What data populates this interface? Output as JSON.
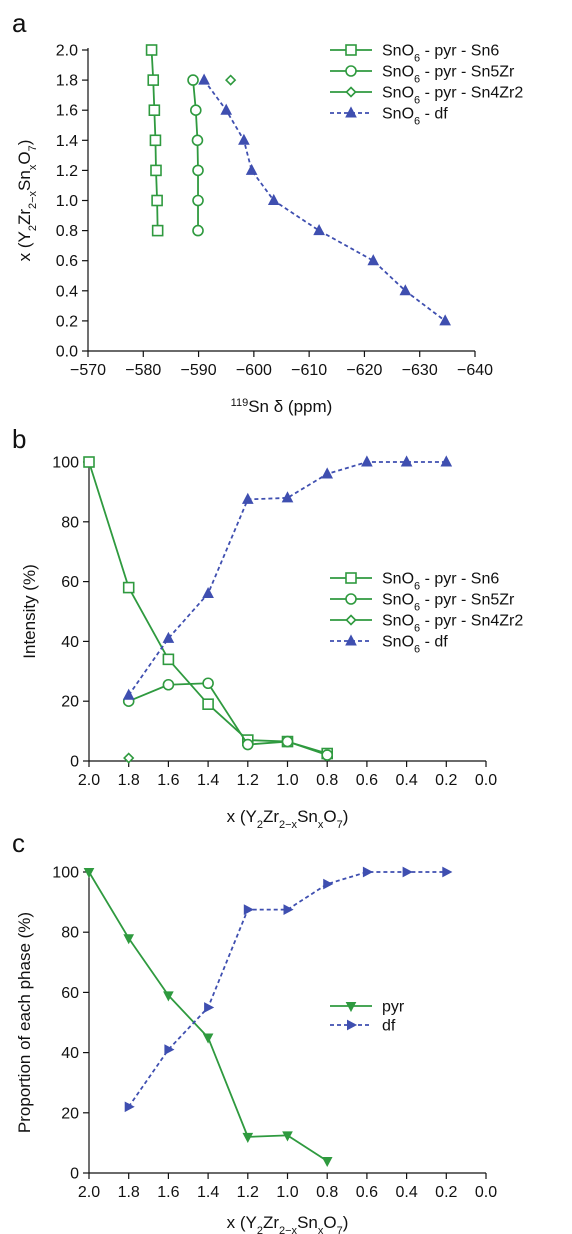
{
  "colors": {
    "green": "#2f9a3f",
    "blue": "#3f4fb0",
    "axis": "#111111"
  },
  "chart_data": [
    {
      "panel": "a",
      "type": "line",
      "xlabel": "119Sn δ (ppm)",
      "xlabel_parts": {
        "sup": "119",
        "rest": "Sn δ (ppm)"
      },
      "ylabel": "x (Y2Zr2−xSnxO7)",
      "xlim": [
        -570,
        -640
      ],
      "ylim": [
        0.0,
        2.0
      ],
      "xticks": [
        -570,
        -580,
        -590,
        -600,
        -610,
        -620,
        -630,
        -640
      ],
      "xtick_labels": [
        "−570",
        "−580",
        "−590",
        "−600",
        "−610",
        "−620",
        "−630",
        "−640"
      ],
      "yticks": [
        0.0,
        0.2,
        0.4,
        0.6,
        0.8,
        1.0,
        1.2,
        1.4,
        1.6,
        1.8,
        2.0
      ],
      "ytick_labels": [
        "0.0",
        "0.2",
        "0.4",
        "0.6",
        "0.8",
        "1.0",
        "1.2",
        "1.4",
        "1.6",
        "1.8",
        "2.0"
      ],
      "legend": [
        {
          "label": "SnO6 - pyr - Sn6",
          "pre": "SnO",
          "sub": "6",
          "post": " - pyr - Sn6"
        },
        {
          "label": "SnO6 - pyr - Sn5Zr",
          "pre": "SnO",
          "sub": "6",
          "post": " - pyr - Sn5Zr"
        },
        {
          "label": "SnO6 - pyr - Sn4Zr2",
          "pre": "SnO",
          "sub": "6",
          "post": " - pyr - Sn4Zr2"
        },
        {
          "label": "SnO6 - df",
          "pre": "SnO",
          "sub": "6",
          "post": " - df"
        }
      ],
      "series": [
        {
          "name": "SnO6 - pyr - Sn6",
          "marker": "square",
          "style": "solid",
          "color": "#2f9a3f",
          "x": [
            -581.5,
            -581.8,
            -582.0,
            -582.2,
            -582.3,
            -582.5,
            -582.6
          ],
          "y": [
            2.0,
            1.8,
            1.6,
            1.4,
            1.2,
            1.0,
            0.8
          ]
        },
        {
          "name": "SnO6 - pyr - Sn5Zr",
          "marker": "circle",
          "style": "solid",
          "color": "#2f9a3f",
          "x": [
            -589.0,
            -589.5,
            -589.8,
            -589.9,
            -589.9,
            -589.9
          ],
          "y": [
            1.8,
            1.6,
            1.4,
            1.2,
            1.0,
            0.8
          ]
        },
        {
          "name": "SnO6 - pyr - Sn4Zr2",
          "marker": "diamond",
          "style": "solid",
          "color": "#2f9a3f",
          "x": [
            -595.8
          ],
          "y": [
            1.8
          ]
        },
        {
          "name": "SnO6 - df",
          "marker": "triangle-up",
          "style": "dashed",
          "color": "#3f4fb0",
          "x": [
            -591.0,
            -595.0,
            -598.2,
            -599.6,
            -603.6,
            -611.8,
            -621.6,
            -627.4,
            -634.6
          ],
          "y": [
            1.8,
            1.6,
            1.4,
            1.2,
            1.0,
            0.8,
            0.6,
            0.4,
            0.2
          ]
        }
      ]
    },
    {
      "panel": "b",
      "type": "line",
      "xlabel": "x (Y2Zr2−xSnxO7)",
      "ylabel": "Intensity (%)",
      "xlim": [
        2.0,
        0.0
      ],
      "ylim": [
        0,
        100
      ],
      "xticks": [
        2.0,
        1.8,
        1.6,
        1.4,
        1.2,
        1.0,
        0.8,
        0.6,
        0.4,
        0.2,
        0.0
      ],
      "xtick_labels": [
        "2.0",
        "1.8",
        "1.6",
        "1.4",
        "1.2",
        "1.0",
        "0.8",
        "0.6",
        "0.4",
        "0.2",
        "0.0"
      ],
      "yticks": [
        0,
        20,
        40,
        60,
        80,
        100
      ],
      "ytick_labels": [
        "0",
        "20",
        "40",
        "60",
        "80",
        "100"
      ],
      "legend": [
        {
          "label": "SnO6 - pyr - Sn6",
          "pre": "SnO",
          "sub": "6",
          "post": " - pyr - Sn6"
        },
        {
          "label": "SnO6 - pyr - Sn5Zr",
          "pre": "SnO",
          "sub": "6",
          "post": " - pyr - Sn5Zr"
        },
        {
          "label": "SnO6 - pyr - Sn4Zr2",
          "pre": "SnO",
          "sub": "6",
          "post": " - pyr - Sn4Zr2"
        },
        {
          "label": "SnO6 - df",
          "pre": "SnO",
          "sub": "6",
          "post": " - df"
        }
      ],
      "series": [
        {
          "name": "SnO6 - pyr - Sn6",
          "marker": "square",
          "style": "solid",
          "color": "#2f9a3f",
          "x": [
            2.0,
            1.8,
            1.6,
            1.4,
            1.2,
            1.0,
            0.8
          ],
          "y": [
            100,
            58,
            34,
            19,
            7,
            6.5,
            2.5
          ]
        },
        {
          "name": "SnO6 - pyr - Sn5Zr",
          "marker": "circle",
          "style": "solid",
          "color": "#2f9a3f",
          "x": [
            1.8,
            1.6,
            1.4,
            1.2,
            1.0,
            0.8
          ],
          "y": [
            20,
            25.5,
            26,
            5.5,
            6.5,
            2
          ]
        },
        {
          "name": "SnO6 - pyr - Sn4Zr2",
          "marker": "diamond",
          "style": "solid",
          "color": "#2f9a3f",
          "x": [
            1.8
          ],
          "y": [
            1
          ]
        },
        {
          "name": "SnO6 - df",
          "marker": "triangle-up",
          "style": "dashed",
          "color": "#3f4fb0",
          "x": [
            1.8,
            1.6,
            1.4,
            1.2,
            1.0,
            0.8,
            0.6,
            0.4,
            0.2
          ],
          "y": [
            22,
            41,
            56,
            87.5,
            88,
            96,
            100,
            100,
            100
          ]
        }
      ]
    },
    {
      "panel": "c",
      "type": "line",
      "xlabel": "x (Y2Zr2−xSnxO7)",
      "ylabel": "Proportion of each phase (%)",
      "xlim": [
        2.0,
        0.0
      ],
      "ylim": [
        0,
        100
      ],
      "xticks": [
        2.0,
        1.8,
        1.6,
        1.4,
        1.2,
        1.0,
        0.8,
        0.6,
        0.4,
        0.2,
        0.0
      ],
      "xtick_labels": [
        "2.0",
        "1.8",
        "1.6",
        "1.4",
        "1.2",
        "1.0",
        "0.8",
        "0.6",
        "0.4",
        "0.2",
        "0.0"
      ],
      "yticks": [
        0,
        20,
        40,
        60,
        80,
        100
      ],
      "ytick_labels": [
        "0",
        "20",
        "40",
        "60",
        "80",
        "100"
      ],
      "legend": [
        {
          "label": "pyr",
          "pre": "pyr",
          "sub": "",
          "post": ""
        },
        {
          "label": "df",
          "pre": "df",
          "sub": "",
          "post": ""
        }
      ],
      "series": [
        {
          "name": "pyr",
          "marker": "triangle-down",
          "style": "solid",
          "color": "#2f9a3f",
          "x": [
            2.0,
            1.8,
            1.6,
            1.4,
            1.2,
            1.0,
            0.8
          ],
          "y": [
            100,
            78,
            59,
            45,
            12,
            12.5,
            4
          ]
        },
        {
          "name": "df",
          "marker": "triangle-right",
          "style": "dashed",
          "color": "#3f4fb0",
          "x": [
            1.8,
            1.6,
            1.4,
            1.2,
            1.0,
            0.8,
            0.6,
            0.4,
            0.2
          ],
          "y": [
            22,
            41,
            55,
            87.5,
            87.5,
            96,
            100,
            100,
            100
          ]
        }
      ]
    }
  ]
}
